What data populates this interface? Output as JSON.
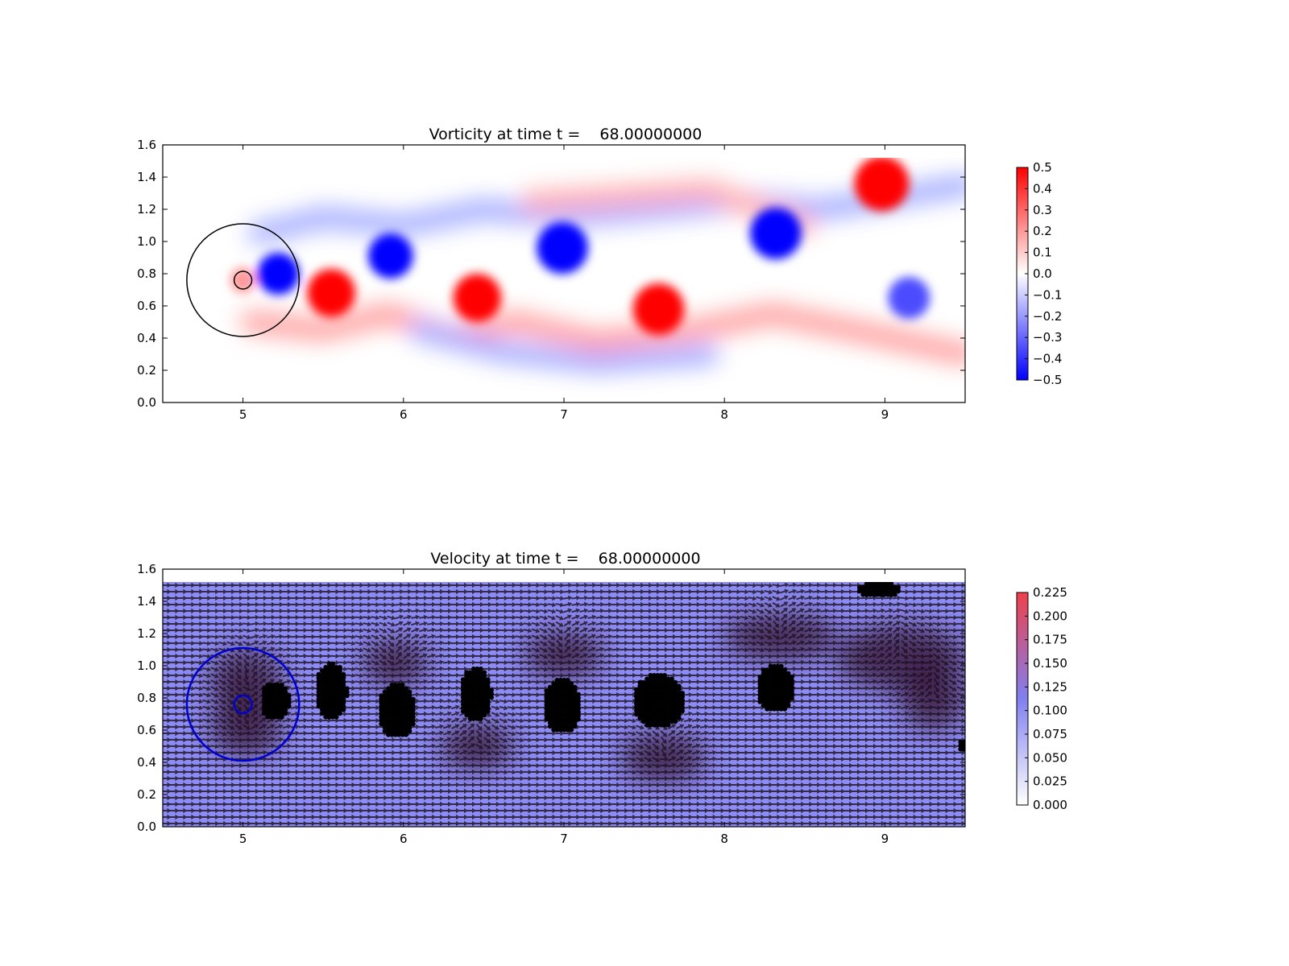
{
  "chart_data": [
    {
      "type": "heatmap",
      "title": "Vorticity at time t =    68.00000000",
      "xlabel": "",
      "ylabel": "",
      "xlim": [
        4.5,
        9.5
      ],
      "ylim": [
        0.0,
        1.6
      ],
      "x_ticks": [
        "5",
        "6",
        "7",
        "8",
        "9"
      ],
      "y_ticks": [
        "0.0",
        "0.2",
        "0.4",
        "0.6",
        "0.8",
        "1.0",
        "1.2",
        "1.4",
        "1.6"
      ],
      "field_extent": {
        "x": [
          4.5,
          9.5
        ],
        "y": [
          0.0,
          1.52
        ]
      },
      "colormap": {
        "low": "#0000ff",
        "mid": "#ffffff",
        "high": "#ff0000"
      },
      "colorbar": {
        "range": [
          -0.5,
          0.5
        ],
        "ticks": [
          "0.5",
          "0.4",
          "0.3",
          "0.2",
          "0.1",
          "0.0",
          "−0.1",
          "−0.2",
          "−0.3",
          "−0.4",
          "−0.5"
        ]
      },
      "vortices": [
        {
          "x": 5.0,
          "y": 0.76,
          "r": 0.08,
          "value": 0.2
        },
        {
          "x": 5.22,
          "y": 0.8,
          "r": 0.13,
          "value": -0.5
        },
        {
          "x": 5.55,
          "y": 0.68,
          "r": 0.15,
          "value": 0.5
        },
        {
          "x": 5.92,
          "y": 0.91,
          "r": 0.14,
          "value": -0.5
        },
        {
          "x": 6.46,
          "y": 0.65,
          "r": 0.15,
          "value": 0.5
        },
        {
          "x": 6.99,
          "y": 0.96,
          "r": 0.16,
          "value": -0.5
        },
        {
          "x": 7.59,
          "y": 0.58,
          "r": 0.16,
          "value": 0.5
        },
        {
          "x": 8.32,
          "y": 1.05,
          "r": 0.16,
          "value": -0.5
        },
        {
          "x": 8.98,
          "y": 1.36,
          "r": 0.17,
          "value": 0.5
        },
        {
          "x": 9.15,
          "y": 0.65,
          "r": 0.13,
          "value": -0.35
        }
      ],
      "circles": [
        {
          "x": 5.0,
          "y": 0.76,
          "r": 0.35,
          "color": "#000000"
        },
        {
          "x": 5.0,
          "y": 0.76,
          "r": 0.055,
          "color": "#000000"
        }
      ]
    },
    {
      "type": "heatmap",
      "title": "Velocity at time t =    68.00000000",
      "xlabel": "",
      "ylabel": "",
      "xlim": [
        4.5,
        9.5
      ],
      "ylim": [
        0.0,
        1.6
      ],
      "x_ticks": [
        "5",
        "6",
        "7",
        "8",
        "9"
      ],
      "y_ticks": [
        "0.0",
        "0.2",
        "0.4",
        "0.6",
        "0.8",
        "1.0",
        "1.2",
        "1.4",
        "1.6"
      ],
      "field_extent": {
        "x": [
          4.5,
          9.5
        ],
        "y": [
          0.0,
          1.52
        ]
      },
      "colormap": {
        "low": "#ffffff",
        "mid": "#8080f0",
        "high": "#f0404a"
      },
      "colorbar": {
        "range": [
          0.0,
          0.225
        ],
        "ticks": [
          "0.225",
          "0.200",
          "0.175",
          "0.150",
          "0.125",
          "0.100",
          "0.075",
          "0.050",
          "0.025",
          "0.000"
        ]
      },
      "background_value": 0.1,
      "dark_regions": [
        {
          "x": 5.02,
          "y": 0.9,
          "rx": 0.22,
          "ry": 0.2
        },
        {
          "x": 5.02,
          "y": 0.62,
          "rx": 0.22,
          "ry": 0.18
        },
        {
          "x": 5.95,
          "y": 1.02,
          "rx": 0.2,
          "ry": 0.14
        },
        {
          "x": 6.46,
          "y": 0.5,
          "rx": 0.22,
          "ry": 0.14
        },
        {
          "x": 7.0,
          "y": 1.07,
          "rx": 0.24,
          "ry": 0.14
        },
        {
          "x": 7.62,
          "y": 0.43,
          "rx": 0.26,
          "ry": 0.15
        },
        {
          "x": 8.35,
          "y": 1.18,
          "rx": 0.35,
          "ry": 0.14
        },
        {
          "x": 9.1,
          "y": 1.05,
          "rx": 0.4,
          "ry": 0.2
        },
        {
          "x": 9.3,
          "y": 0.8,
          "rx": 0.2,
          "ry": 0.2
        }
      ],
      "particle_clusters": [
        {
          "x": 5.2,
          "y": 0.78,
          "rx": 0.09,
          "ry": 0.12
        },
        {
          "x": 5.55,
          "y": 0.84,
          "rx": 0.1,
          "ry": 0.18
        },
        {
          "x": 5.96,
          "y": 0.72,
          "rx": 0.12,
          "ry": 0.17
        },
        {
          "x": 6.45,
          "y": 0.82,
          "rx": 0.1,
          "ry": 0.17
        },
        {
          "x": 6.99,
          "y": 0.75,
          "rx": 0.12,
          "ry": 0.17
        },
        {
          "x": 7.59,
          "y": 0.78,
          "rx": 0.16,
          "ry": 0.17
        },
        {
          "x": 8.32,
          "y": 0.86,
          "rx": 0.12,
          "ry": 0.15
        },
        {
          "x": 8.96,
          "y": 1.47,
          "rx": 0.14,
          "ry": 0.05
        },
        {
          "x": 9.48,
          "y": 0.5,
          "rx": 0.03,
          "ry": 0.04
        }
      ],
      "circles": [
        {
          "x": 5.0,
          "y": 0.76,
          "r": 0.35,
          "color": "#0000cc"
        },
        {
          "x": 5.0,
          "y": 0.76,
          "r": 0.055,
          "color": "#0000cc"
        }
      ]
    }
  ]
}
